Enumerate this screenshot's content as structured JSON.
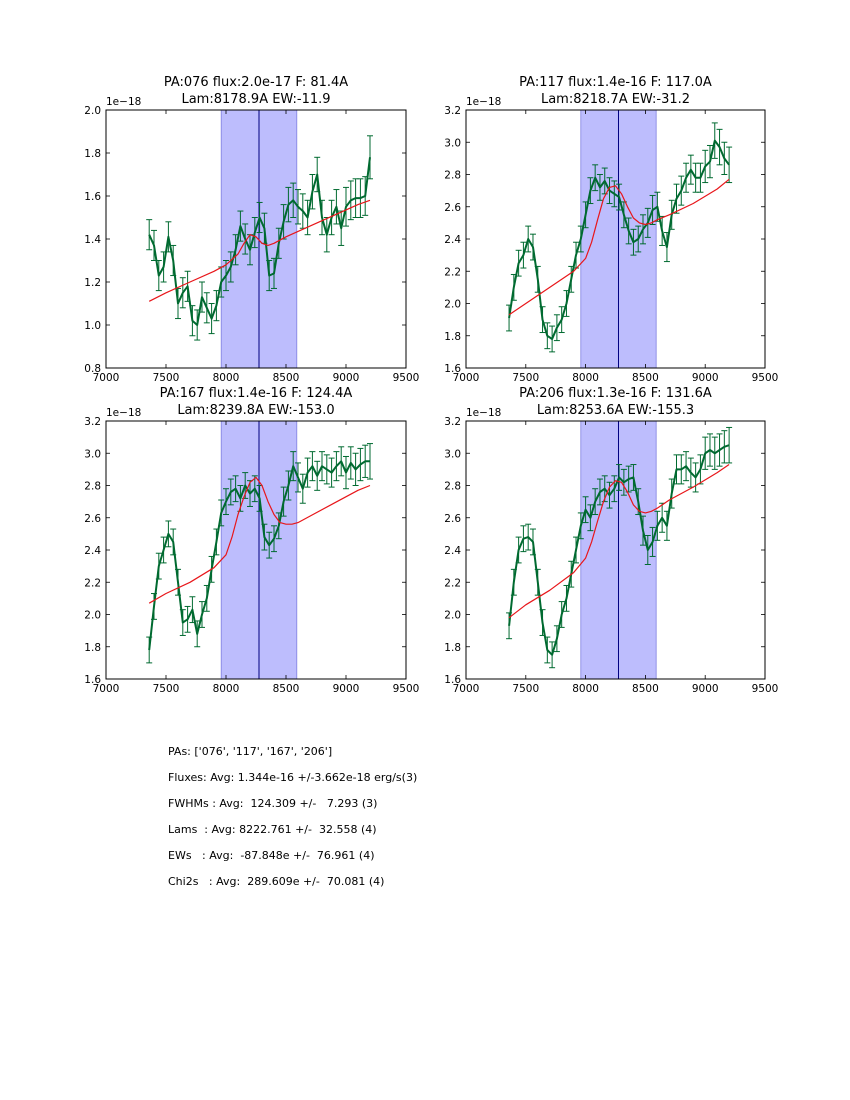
{
  "chart_data": [
    {
      "type": "line",
      "title_line1": "PA:076 flux:2.0e-17 F: 81.4A",
      "title_line2": "Lam:8178.9A EW:-11.9",
      "xlim": [
        7000,
        9500
      ],
      "ylim": [
        0.8,
        2.0
      ],
      "xticks": [
        7000,
        7500,
        8000,
        8500,
        9000,
        9500
      ],
      "xtick_labels": [
        "7000",
        "7500",
        "8000",
        "8500",
        "9000",
        "9500"
      ],
      "yticks": [
        0.8,
        1.0,
        1.2,
        1.4,
        1.6,
        1.8,
        2.0
      ],
      "ytick_labels": [
        "0.8",
        "1.0",
        "1.2",
        "1.4",
        "1.6",
        "1.8",
        "2.0"
      ],
      "offset_label": "1e−18",
      "band": [
        7960,
        8590
      ],
      "center_line": 8275,
      "colors": {
        "data": "#006a30",
        "fit": "#e8161a",
        "band": "#bdbdfd",
        "band_edge": "#7f7fe0",
        "center": "#000080"
      },
      "data_x": [
        7360,
        7400,
        7440,
        7480,
        7520,
        7560,
        7600,
        7640,
        7680,
        7720,
        7760,
        7800,
        7840,
        7880,
        7920,
        7960,
        8000,
        8040,
        8080,
        8120,
        8160,
        8200,
        8240,
        8280,
        8320,
        8360,
        8400,
        8440,
        8480,
        8520,
        8560,
        8600,
        8640,
        8680,
        8720,
        8760,
        8800,
        8840,
        8880,
        8920,
        8960,
        9000,
        9040,
        9080,
        9120,
        9160,
        9200
      ],
      "data_y": [
        1.42,
        1.37,
        1.23,
        1.27,
        1.41,
        1.3,
        1.1,
        1.15,
        1.18,
        1.02,
        1.0,
        1.13,
        1.08,
        1.03,
        1.09,
        1.2,
        1.23,
        1.27,
        1.35,
        1.46,
        1.4,
        1.35,
        1.43,
        1.5,
        1.45,
        1.23,
        1.24,
        1.38,
        1.48,
        1.56,
        1.58,
        1.55,
        1.53,
        1.5,
        1.62,
        1.7,
        1.5,
        1.42,
        1.5,
        1.55,
        1.45,
        1.55,
        1.58,
        1.59,
        1.59,
        1.6,
        1.78
      ],
      "err": [
        0.07,
        0.07,
        0.07,
        0.07,
        0.07,
        0.07,
        0.07,
        0.07,
        0.07,
        0.07,
        0.07,
        0.07,
        0.07,
        0.07,
        0.07,
        0.07,
        0.07,
        0.07,
        0.07,
        0.07,
        0.07,
        0.07,
        0.07,
        0.07,
        0.07,
        0.07,
        0.07,
        0.07,
        0.08,
        0.08,
        0.08,
        0.08,
        0.08,
        0.08,
        0.08,
        0.08,
        0.08,
        0.08,
        0.08,
        0.08,
        0.08,
        0.09,
        0.09,
        0.09,
        0.09,
        0.09,
        0.1
      ],
      "fit_x": [
        7360,
        7500,
        7700,
        7900,
        8000,
        8100,
        8150,
        8200,
        8250,
        8300,
        8350,
        8400,
        8500,
        8700,
        8900,
        9100,
        9200
      ],
      "fit_y": [
        1.11,
        1.15,
        1.2,
        1.25,
        1.28,
        1.33,
        1.38,
        1.42,
        1.41,
        1.38,
        1.37,
        1.38,
        1.41,
        1.46,
        1.51,
        1.56,
        1.58
      ]
    },
    {
      "type": "line",
      "title_line1": "PA:117 flux:1.4e-16 F: 117.0A",
      "title_line2": "Lam:8218.7A EW:-31.2",
      "xlim": [
        7000,
        9500
      ],
      "ylim": [
        1.6,
        3.2
      ],
      "xticks": [
        7000,
        7500,
        8000,
        8500,
        9000,
        9500
      ],
      "xtick_labels": [
        "7000",
        "7500",
        "8000",
        "8500",
        "9000",
        "9500"
      ],
      "yticks": [
        1.6,
        1.8,
        2.0,
        2.2,
        2.4,
        2.6,
        2.8,
        3.0,
        3.2
      ],
      "ytick_labels": [
        "1.6",
        "1.8",
        "2.0",
        "2.2",
        "2.4",
        "2.6",
        "2.8",
        "3.0",
        "3.2"
      ],
      "offset_label": "1e−18",
      "band": [
        7960,
        8590
      ],
      "center_line": 8275,
      "colors": {
        "data": "#006a30",
        "fit": "#e8161a",
        "band": "#bdbdfd",
        "band_edge": "#7f7fe0",
        "center": "#000080"
      },
      "data_x": [
        7360,
        7400,
        7440,
        7480,
        7520,
        7560,
        7600,
        7640,
        7680,
        7720,
        7760,
        7800,
        7840,
        7880,
        7920,
        7960,
        8000,
        8040,
        8080,
        8120,
        8160,
        8200,
        8240,
        8280,
        8320,
        8360,
        8400,
        8440,
        8480,
        8520,
        8560,
        8600,
        8640,
        8680,
        8720,
        8760,
        8800,
        8840,
        8880,
        8920,
        8960,
        9000,
        9040,
        9080,
        9120,
        9160,
        9200
      ],
      "data_y": [
        1.91,
        2.1,
        2.25,
        2.3,
        2.4,
        2.35,
        2.15,
        1.9,
        1.8,
        1.78,
        1.85,
        1.9,
        2.0,
        2.15,
        2.3,
        2.4,
        2.55,
        2.7,
        2.78,
        2.72,
        2.76,
        2.7,
        2.68,
        2.66,
        2.55,
        2.45,
        2.38,
        2.4,
        2.46,
        2.5,
        2.58,
        2.6,
        2.45,
        2.35,
        2.55,
        2.65,
        2.7,
        2.78,
        2.83,
        2.78,
        2.78,
        2.85,
        2.88,
        3.01,
        2.97,
        2.9,
        2.86
      ],
      "err": [
        0.08,
        0.08,
        0.08,
        0.08,
        0.08,
        0.08,
        0.08,
        0.08,
        0.08,
        0.08,
        0.08,
        0.08,
        0.08,
        0.08,
        0.08,
        0.08,
        0.08,
        0.08,
        0.08,
        0.08,
        0.08,
        0.08,
        0.08,
        0.08,
        0.08,
        0.08,
        0.08,
        0.08,
        0.09,
        0.09,
        0.09,
        0.09,
        0.09,
        0.09,
        0.09,
        0.09,
        0.09,
        0.09,
        0.09,
        0.09,
        0.09,
        0.1,
        0.1,
        0.11,
        0.11,
        0.1,
        0.11
      ],
      "fit_x": [
        7360,
        7500,
        7700,
        7900,
        8000,
        8050,
        8100,
        8150,
        8200,
        8250,
        8300,
        8350,
        8400,
        8450,
        8500,
        8550,
        8600,
        8700,
        8900,
        9100,
        9200
      ],
      "fit_y": [
        1.93,
        2.0,
        2.1,
        2.2,
        2.28,
        2.38,
        2.52,
        2.65,
        2.72,
        2.73,
        2.68,
        2.6,
        2.53,
        2.5,
        2.49,
        2.5,
        2.52,
        2.55,
        2.62,
        2.71,
        2.77
      ]
    },
    {
      "type": "line",
      "title_line1": "PA:167 flux:1.4e-16 F: 124.4A",
      "title_line2": "Lam:8239.8A EW:-153.0",
      "xlim": [
        7000,
        9500
      ],
      "ylim": [
        1.6,
        3.2
      ],
      "xticks": [
        7000,
        7500,
        8000,
        8500,
        9000,
        9500
      ],
      "xtick_labels": [
        "7000",
        "7500",
        "8000",
        "8500",
        "9000",
        "9500"
      ],
      "yticks": [
        1.6,
        1.8,
        2.0,
        2.2,
        2.4,
        2.6,
        2.8,
        3.0,
        3.2
      ],
      "ytick_labels": [
        "1.6",
        "1.8",
        "2.0",
        "2.2",
        "2.4",
        "2.6",
        "2.8",
        "3.0",
        "3.2"
      ],
      "offset_label": "1e−18",
      "band": [
        7960,
        8590
      ],
      "center_line": 8275,
      "colors": {
        "data": "#006a30",
        "fit": "#e8161a",
        "band": "#bdbdfd",
        "band_edge": "#7f7fe0",
        "center": "#000080"
      },
      "data_x": [
        7360,
        7400,
        7440,
        7480,
        7520,
        7560,
        7600,
        7640,
        7680,
        7720,
        7760,
        7800,
        7840,
        7880,
        7920,
        7960,
        8000,
        8040,
        8080,
        8120,
        8160,
        8200,
        8240,
        8280,
        8320,
        8360,
        8400,
        8440,
        8480,
        8520,
        8560,
        8600,
        8640,
        8680,
        8720,
        8760,
        8800,
        8840,
        8880,
        8920,
        8960,
        9000,
        9040,
        9080,
        9120,
        9160,
        9200
      ],
      "data_y": [
        1.78,
        2.05,
        2.3,
        2.4,
        2.5,
        2.45,
        2.2,
        1.95,
        1.97,
        2.03,
        1.88,
        2.0,
        2.1,
        2.28,
        2.45,
        2.63,
        2.7,
        2.76,
        2.78,
        2.72,
        2.8,
        2.75,
        2.78,
        2.72,
        2.48,
        2.43,
        2.47,
        2.55,
        2.7,
        2.8,
        2.92,
        2.85,
        2.78,
        2.88,
        2.92,
        2.86,
        2.92,
        2.9,
        2.88,
        2.92,
        2.95,
        2.88,
        2.94,
        2.9,
        2.93,
        2.95,
        2.95
      ],
      "err": [
        0.08,
        0.08,
        0.08,
        0.08,
        0.08,
        0.08,
        0.08,
        0.08,
        0.08,
        0.08,
        0.08,
        0.08,
        0.08,
        0.08,
        0.08,
        0.08,
        0.08,
        0.08,
        0.08,
        0.08,
        0.08,
        0.08,
        0.08,
        0.08,
        0.08,
        0.08,
        0.08,
        0.08,
        0.09,
        0.09,
        0.09,
        0.09,
        0.09,
        0.09,
        0.09,
        0.09,
        0.09,
        0.09,
        0.09,
        0.09,
        0.09,
        0.1,
        0.1,
        0.1,
        0.1,
        0.1,
        0.11
      ],
      "fit_x": [
        7360,
        7500,
        7700,
        7900,
        8000,
        8050,
        8100,
        8150,
        8200,
        8250,
        8300,
        8350,
        8400,
        8450,
        8500,
        8550,
        8600,
        8700,
        8900,
        9100,
        9200
      ],
      "fit_y": [
        2.07,
        2.13,
        2.2,
        2.29,
        2.37,
        2.48,
        2.62,
        2.73,
        2.82,
        2.85,
        2.8,
        2.7,
        2.62,
        2.57,
        2.56,
        2.56,
        2.57,
        2.61,
        2.69,
        2.77,
        2.8
      ]
    },
    {
      "type": "line",
      "title_line1": "PA:206 flux:1.3e-16 F: 131.6A",
      "title_line2": "Lam:8253.6A EW:-155.3",
      "xlim": [
        7000,
        9500
      ],
      "ylim": [
        1.6,
        3.2
      ],
      "xticks": [
        7000,
        7500,
        8000,
        8500,
        9000,
        9500
      ],
      "xtick_labels": [
        "7000",
        "7500",
        "8000",
        "8500",
        "9000",
        "9500"
      ],
      "yticks": [
        1.6,
        1.8,
        2.0,
        2.2,
        2.4,
        2.6,
        2.8,
        3.0,
        3.2
      ],
      "ytick_labels": [
        "1.6",
        "1.8",
        "2.0",
        "2.2",
        "2.4",
        "2.6",
        "2.8",
        "3.0",
        "3.2"
      ],
      "offset_label": "1e−18",
      "band": [
        7960,
        8590
      ],
      "center_line": 8275,
      "colors": {
        "data": "#006a30",
        "fit": "#e8161a",
        "band": "#bdbdfd",
        "band_edge": "#7f7fe0",
        "center": "#000080"
      },
      "data_x": [
        7360,
        7400,
        7440,
        7480,
        7520,
        7560,
        7600,
        7640,
        7680,
        7720,
        7760,
        7800,
        7840,
        7880,
        7920,
        7960,
        8000,
        8040,
        8080,
        8120,
        8160,
        8200,
        8240,
        8280,
        8320,
        8360,
        8400,
        8440,
        8480,
        8520,
        8560,
        8600,
        8640,
        8680,
        8720,
        8760,
        8800,
        8840,
        8880,
        8920,
        8960,
        9000,
        9040,
        9080,
        9120,
        9160,
        9200
      ],
      "data_y": [
        1.93,
        2.2,
        2.4,
        2.47,
        2.48,
        2.45,
        2.2,
        1.95,
        1.78,
        1.75,
        1.85,
        2.0,
        2.1,
        2.25,
        2.4,
        2.55,
        2.65,
        2.6,
        2.7,
        2.76,
        2.78,
        2.74,
        2.78,
        2.85,
        2.82,
        2.84,
        2.85,
        2.7,
        2.52,
        2.4,
        2.45,
        2.55,
        2.6,
        2.55,
        2.75,
        2.9,
        2.9,
        2.92,
        2.88,
        2.85,
        2.9,
        3.0,
        3.02,
        3.0,
        3.02,
        3.04,
        3.05
      ],
      "err": [
        0.08,
        0.08,
        0.08,
        0.08,
        0.08,
        0.08,
        0.08,
        0.08,
        0.08,
        0.08,
        0.08,
        0.08,
        0.08,
        0.08,
        0.08,
        0.08,
        0.08,
        0.08,
        0.08,
        0.08,
        0.08,
        0.08,
        0.08,
        0.08,
        0.08,
        0.08,
        0.08,
        0.08,
        0.09,
        0.09,
        0.09,
        0.09,
        0.09,
        0.09,
        0.09,
        0.09,
        0.09,
        0.09,
        0.09,
        0.09,
        0.09,
        0.1,
        0.1,
        0.1,
        0.1,
        0.1,
        0.11
      ],
      "fit_x": [
        7360,
        7500,
        7700,
        7900,
        8000,
        8050,
        8100,
        8150,
        8200,
        8250,
        8300,
        8350,
        8400,
        8450,
        8500,
        8550,
        8600,
        8700,
        8900,
        9100,
        9200
      ],
      "fit_y": [
        1.98,
        2.06,
        2.15,
        2.26,
        2.35,
        2.45,
        2.58,
        2.7,
        2.79,
        2.83,
        2.82,
        2.76,
        2.68,
        2.64,
        2.63,
        2.64,
        2.66,
        2.71,
        2.79,
        2.88,
        2.93
      ]
    }
  ],
  "summary": {
    "pas": "PAs: ['076', '117', '167', '206']",
    "fluxes": "Fluxes: Avg: 1.344e-16 +/-3.662e-18 erg/s(3)",
    "fwhms": "FWHMs : Avg:  124.309 +/-   7.293 (3)",
    "lams": "Lams  : Avg: 8222.761 +/-  32.558 (4)",
    "ews": "EWs   : Avg:  -87.848e +/-  76.961 (4)",
    "chi2s": "Chi2s   : Avg:  289.609e +/-  70.081 (4)"
  }
}
